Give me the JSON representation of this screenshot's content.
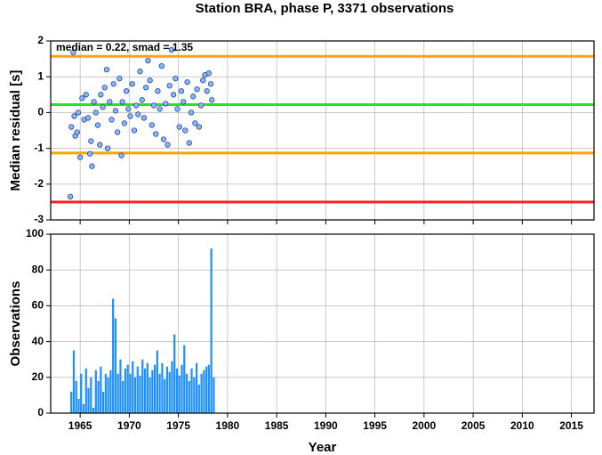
{
  "title": "Station BRA, phase P, 3371 observations",
  "chart_data": [
    {
      "type": "scatter",
      "ylabel": "Median residual [s]",
      "annotation": "median = 0.22, smad = 1.35",
      "color": "#87b4ff",
      "grid": true,
      "xlim": [
        1962,
        2017.3
      ],
      "xticks": [
        1965,
        1970,
        1975,
        1980,
        1985,
        1990,
        1995,
        2000,
        2005,
        2010,
        2015
      ],
      "ylim": [
        -3,
        2
      ],
      "yticks": [
        -3,
        -2,
        -1,
        0,
        1,
        2
      ],
      "reference_lines": [
        {
          "value": 1.57,
          "color": "#ffa500"
        },
        {
          "value": 0.22,
          "color": "#22e622"
        },
        {
          "value": -1.13,
          "color": "#ffa500"
        },
        {
          "value": -2.5,
          "color": "#ff2020"
        }
      ],
      "x": [
        1964.0,
        1964.1,
        1964.3,
        1964.4,
        1964.5,
        1964.7,
        1964.8,
        1965.0,
        1965.2,
        1965.4,
        1965.6,
        1965.8,
        1966.0,
        1966.1,
        1966.2,
        1966.4,
        1966.6,
        1966.8,
        1967.0,
        1967.1,
        1967.3,
        1967.5,
        1967.7,
        1967.8,
        1968.0,
        1968.2,
        1968.4,
        1968.6,
        1968.8,
        1969.0,
        1969.2,
        1969.3,
        1969.5,
        1969.7,
        1969.9,
        1970.1,
        1970.3,
        1970.5,
        1970.7,
        1970.9,
        1971.1,
        1971.3,
        1971.5,
        1971.7,
        1971.9,
        1972.1,
        1972.3,
        1972.5,
        1972.7,
        1972.9,
        1973.1,
        1973.3,
        1973.5,
        1973.7,
        1973.9,
        1974.1,
        1974.3,
        1974.5,
        1974.7,
        1974.9,
        1975.1,
        1975.3,
        1975.5,
        1975.7,
        1975.9,
        1976.1,
        1976.3,
        1976.5,
        1976.7,
        1976.9,
        1977.1,
        1977.3,
        1977.5,
        1977.7,
        1977.9,
        1978.1,
        1978.3,
        1978.4
      ],
      "values": [
        -2.35,
        -0.4,
        1.68,
        -0.1,
        -0.65,
        -0.55,
        0.0,
        -1.25,
        0.4,
        -0.2,
        0.5,
        -0.15,
        -1.15,
        -0.8,
        -1.5,
        0.3,
        0.0,
        -0.35,
        -0.9,
        0.5,
        0.15,
        0.7,
        1.2,
        -1.0,
        0.3,
        -0.2,
        0.8,
        0.05,
        -0.55,
        0.95,
        -1.2,
        0.3,
        -0.3,
        0.6,
        0.1,
        -0.1,
        0.8,
        -0.5,
        0.2,
        -0.05,
        1.15,
        0.35,
        -0.15,
        0.7,
        1.45,
        0.9,
        -0.35,
        0.2,
        -0.6,
        0.6,
        0.1,
        1.3,
        -0.75,
        0.25,
        -0.9,
        0.75,
        1.75,
        0.5,
        0.95,
        0.1,
        -0.4,
        0.6,
        0.3,
        -0.5,
        0.85,
        -0.85,
        0.0,
        0.45,
        -0.3,
        0.65,
        -0.4,
        0.2,
        0.9,
        1.05,
        0.6,
        1.1,
        0.8,
        0.35
      ]
    },
    {
      "type": "bar",
      "ylabel": "Observations",
      "xlabel": "Year",
      "color": "#1e8fff",
      "grid": true,
      "xlim": [
        1962,
        2017.3
      ],
      "xticks": [
        1965,
        1970,
        1975,
        1980,
        1985,
        1990,
        1995,
        2000,
        2005,
        2010,
        2015
      ],
      "ylim": [
        0,
        100
      ],
      "yticks": [
        0,
        20,
        40,
        60,
        80,
        100
      ],
      "x": [
        1964.0,
        1964.25,
        1964.5,
        1964.75,
        1965.0,
        1965.25,
        1965.5,
        1965.75,
        1966.0,
        1966.25,
        1966.5,
        1966.75,
        1967.0,
        1967.25,
        1967.5,
        1967.75,
        1968.0,
        1968.25,
        1968.5,
        1968.75,
        1969.0,
        1969.25,
        1969.5,
        1969.75,
        1970.0,
        1970.25,
        1970.5,
        1970.75,
        1971.0,
        1971.25,
        1971.5,
        1971.75,
        1972.0,
        1972.25,
        1972.5,
        1972.75,
        1973.0,
        1973.25,
        1973.5,
        1973.75,
        1974.0,
        1974.25,
        1974.5,
        1974.75,
        1975.0,
        1975.25,
        1975.5,
        1975.75,
        1976.0,
        1976.25,
        1976.5,
        1976.75,
        1977.0,
        1977.25,
        1977.5,
        1977.75,
        1978.0,
        1978.25,
        1978.5
      ],
      "values": [
        12,
        35,
        18,
        8,
        22,
        5,
        25,
        14,
        20,
        3,
        24,
        18,
        26,
        12,
        22,
        20,
        24,
        64,
        53,
        22,
        30,
        18,
        25,
        27,
        22,
        29,
        20,
        26,
        21,
        30,
        25,
        28,
        20,
        24,
        27,
        35,
        22,
        28,
        19,
        26,
        23,
        29,
        44,
        25,
        21,
        27,
        38,
        22,
        18,
        25,
        20,
        28,
        16,
        22,
        24,
        26,
        27,
        92,
        20
      ]
    }
  ]
}
